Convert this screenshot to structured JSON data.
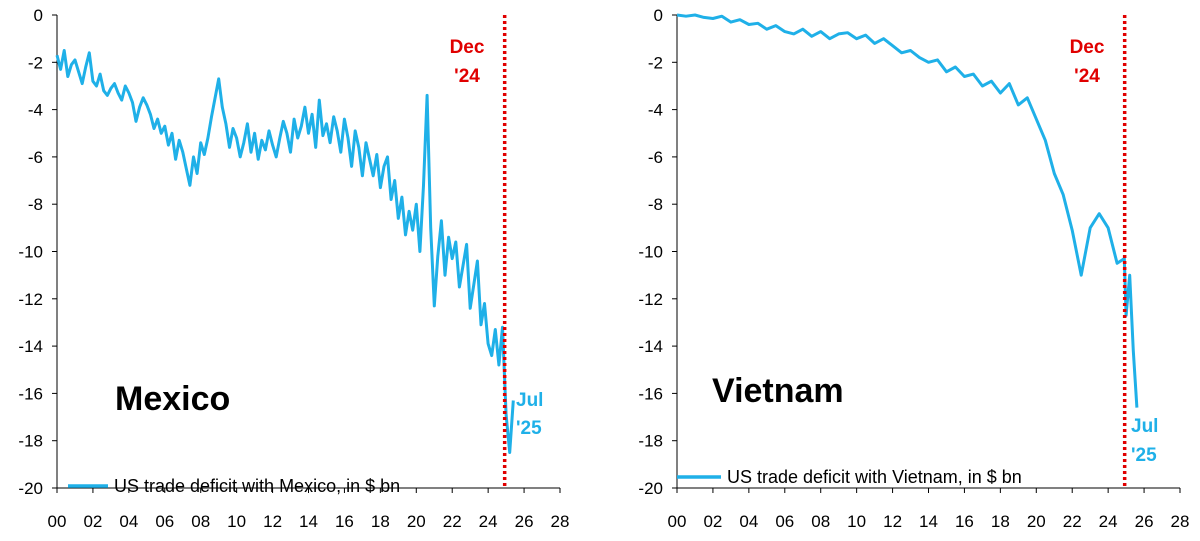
{
  "chart_data": [
    {
      "type": "line",
      "panel_label": "Mexico",
      "legend": "US trade deficit with Mexico, in $ bn",
      "x_ticks": [
        "00",
        "02",
        "04",
        "06",
        "08",
        "10",
        "12",
        "14",
        "16",
        "18",
        "20",
        "22",
        "24",
        "26",
        "28"
      ],
      "y_ticks": [
        "0",
        "-2",
        "-4",
        "-6",
        "-8",
        "-10",
        "-12",
        "-14",
        "-16",
        "-18",
        "-20"
      ],
      "xlim": [
        2000,
        2028
      ],
      "ylim": [
        -20,
        0
      ],
      "grid": false,
      "legend_position": "bottom-left",
      "line_color": "#1fb0e8",
      "marker_color": "#e00000",
      "annotations": {
        "marker_label_1": "Dec",
        "marker_label_2": "'24",
        "end_label_1": "Jul",
        "end_label_2": "'25"
      },
      "vline_x": 2024.92,
      "series": [
        {
          "x": [
            2000.0,
            2000.2,
            2000.4,
            2000.6,
            2000.8,
            2001.0,
            2001.2,
            2001.4,
            2001.6,
            2001.8,
            2002.0,
            2002.2,
            2002.4,
            2002.6,
            2002.8,
            2003.0,
            2003.2,
            2003.4,
            2003.6,
            2003.8,
            2004.0,
            2004.2,
            2004.4,
            2004.6,
            2004.8,
            2005.0,
            2005.2,
            2005.4,
            2005.6,
            2005.8,
            2006.0,
            2006.2,
            2006.4,
            2006.6,
            2006.8,
            2007.0,
            2007.2,
            2007.4,
            2007.6,
            2007.8,
            2008.0,
            2008.2,
            2008.4,
            2008.6,
            2008.8,
            2009.0,
            2009.2,
            2009.4,
            2009.6,
            2009.8,
            2010.0,
            2010.2,
            2010.4,
            2010.6,
            2010.8,
            2011.0,
            2011.2,
            2011.4,
            2011.6,
            2011.8,
            2012.0,
            2012.2,
            2012.4,
            2012.6,
            2012.8,
            2013.0,
            2013.2,
            2013.4,
            2013.6,
            2013.8,
            2014.0,
            2014.2,
            2014.4,
            2014.6,
            2014.8,
            2015.0,
            2015.2,
            2015.4,
            2015.6,
            2015.8,
            2016.0,
            2016.2,
            2016.4,
            2016.6,
            2016.8,
            2017.0,
            2017.2,
            2017.4,
            2017.6,
            2017.8,
            2018.0,
            2018.2,
            2018.4,
            2018.6,
            2018.8,
            2019.0,
            2019.2,
            2019.4,
            2019.6,
            2019.8,
            2020.0,
            2020.2,
            2020.4,
            2020.6,
            2020.8,
            2021.0,
            2021.2,
            2021.4,
            2021.6,
            2021.8,
            2022.0,
            2022.2,
            2022.4,
            2022.6,
            2022.8,
            2023.0,
            2023.2,
            2023.4,
            2023.6,
            2023.8,
            2024.0,
            2024.2,
            2024.4,
            2024.6,
            2024.8,
            2025.0,
            2025.2,
            2025.4
          ],
          "values": [
            -1.7,
            -2.3,
            -1.5,
            -2.6,
            -2.1,
            -1.9,
            -2.4,
            -2.9,
            -2.2,
            -1.6,
            -2.8,
            -3.0,
            -2.5,
            -3.2,
            -3.4,
            -3.1,
            -2.9,
            -3.3,
            -3.6,
            -3.0,
            -3.3,
            -3.7,
            -4.5,
            -3.9,
            -3.5,
            -3.8,
            -4.2,
            -4.8,
            -4.4,
            -5.0,
            -4.7,
            -5.5,
            -5.0,
            -6.1,
            -5.3,
            -5.8,
            -6.5,
            -7.2,
            -6.0,
            -6.7,
            -5.4,
            -5.9,
            -5.2,
            -4.3,
            -3.5,
            -2.7,
            -3.9,
            -4.6,
            -5.6,
            -4.8,
            -5.2,
            -6.0,
            -5.4,
            -4.6,
            -5.8,
            -5.0,
            -6.1,
            -5.3,
            -5.7,
            -4.9,
            -5.5,
            -6.0,
            -5.2,
            -4.5,
            -5.0,
            -5.8,
            -4.4,
            -5.2,
            -4.7,
            -3.9,
            -5.0,
            -4.2,
            -5.6,
            -3.6,
            -5.1,
            -4.6,
            -5.4,
            -4.3,
            -4.9,
            -5.8,
            -4.4,
            -5.2,
            -6.4,
            -4.9,
            -5.6,
            -6.8,
            -5.4,
            -6.1,
            -6.8,
            -5.9,
            -7.3,
            -6.4,
            -6.0,
            -7.8,
            -7.0,
            -8.6,
            -7.7,
            -9.3,
            -8.3,
            -9.1,
            -8.0,
            -10.0,
            -7.2,
            -3.4,
            -9.0,
            -12.3,
            -10.2,
            -8.7,
            -11.0,
            -9.4,
            -10.3,
            -9.6,
            -11.5,
            -10.6,
            -9.7,
            -12.4,
            -11.4,
            -10.4,
            -13.1,
            -12.2,
            -13.9,
            -14.4,
            -13.3,
            -14.8,
            -13.2,
            -16.9,
            -18.5,
            -16.3
          ]
        }
      ]
    },
    {
      "type": "line",
      "panel_label": "Vietnam",
      "legend": "US trade deficit with Vietnam, in $ bn",
      "x_ticks": [
        "00",
        "02",
        "04",
        "06",
        "08",
        "10",
        "12",
        "14",
        "16",
        "18",
        "20",
        "22",
        "24",
        "26",
        "28"
      ],
      "y_ticks": [
        "0",
        "-2",
        "-4",
        "-6",
        "-8",
        "-10",
        "-12",
        "-14",
        "-16",
        "-18",
        "-20"
      ],
      "xlim": [
        2000,
        2028
      ],
      "ylim": [
        -20,
        0
      ],
      "grid": false,
      "legend_position": "bottom-left",
      "line_color": "#1fb0e8",
      "marker_color": "#e00000",
      "annotations": {
        "marker_label_1": "Dec",
        "marker_label_2": "'24",
        "end_label_1": "Jul",
        "end_label_2": "'25"
      },
      "vline_x": 2024.92,
      "series": [
        {
          "x": [
            2000.0,
            2000.5,
            2001.0,
            2001.5,
            2002.0,
            2002.5,
            2003.0,
            2003.5,
            2004.0,
            2004.5,
            2005.0,
            2005.5,
            2006.0,
            2006.5,
            2007.0,
            2007.5,
            2008.0,
            2008.5,
            2009.0,
            2009.5,
            2010.0,
            2010.5,
            2011.0,
            2011.5,
            2012.0,
            2012.5,
            2013.0,
            2013.5,
            2014.0,
            2014.5,
            2015.0,
            2015.5,
            2016.0,
            2016.5,
            2017.0,
            2017.5,
            2018.0,
            2018.5,
            2019.0,
            2019.5,
            2020.0,
            2020.5,
            2021.0,
            2021.5,
            2022.0,
            2022.5,
            2023.0,
            2023.5,
            2024.0,
            2024.5,
            2024.9,
            2025.0,
            2025.2,
            2025.4,
            2025.6
          ],
          "values": [
            0.0,
            -0.05,
            0.0,
            -0.1,
            -0.15,
            -0.05,
            -0.3,
            -0.2,
            -0.4,
            -0.35,
            -0.6,
            -0.45,
            -0.7,
            -0.8,
            -0.6,
            -0.9,
            -0.7,
            -1.0,
            -0.8,
            -0.75,
            -1.0,
            -0.85,
            -1.2,
            -1.0,
            -1.3,
            -1.6,
            -1.5,
            -1.8,
            -2.0,
            -1.9,
            -2.4,
            -2.2,
            -2.6,
            -2.5,
            -3.0,
            -2.8,
            -3.3,
            -2.9,
            -3.8,
            -3.5,
            -4.4,
            -5.3,
            -6.7,
            -7.6,
            -9.1,
            -11.0,
            -9.0,
            -8.4,
            -9.0,
            -10.5,
            -10.3,
            -12.7,
            -11.0,
            -14.2,
            -16.6
          ]
        }
      ]
    }
  ]
}
